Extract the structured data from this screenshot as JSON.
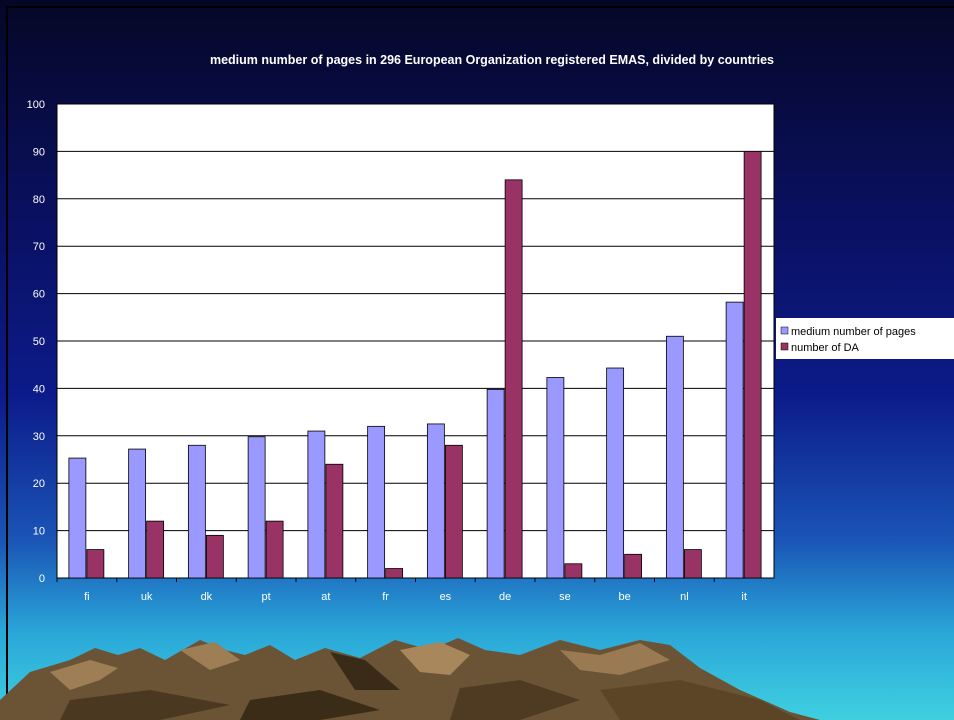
{
  "chart_data": {
    "type": "bar",
    "title": "medium number of pages in 296 European Organization registered EMAS, divided by countries",
    "categories": [
      "fi",
      "uk",
      "dk",
      "pt",
      "at",
      "fr",
      "es",
      "de",
      "se",
      "be",
      "nl",
      "it"
    ],
    "series": [
      {
        "name": "medium number of pages",
        "color": "#9999ff",
        "values": [
          25.3,
          27.2,
          28,
          29.8,
          31,
          32,
          32.5,
          39.8,
          42.3,
          44.3,
          51,
          58.2
        ]
      },
      {
        "name": "number of DA",
        "color": "#993366",
        "values": [
          6,
          12,
          9,
          12,
          24,
          2,
          28,
          84,
          3,
          5,
          6,
          90
        ]
      }
    ],
    "yticks": [
      0,
      10,
      20,
      30,
      40,
      50,
      60,
      70,
      80,
      90,
      100
    ],
    "ylim": [
      0,
      100
    ],
    "grid": true,
    "legend": "right"
  }
}
